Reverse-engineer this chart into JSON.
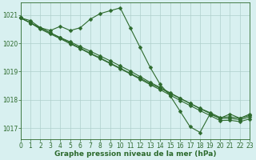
{
  "lines": [
    {
      "x": [
        0,
        1,
        2,
        3,
        4,
        5,
        6,
        7,
        8,
        9,
        10,
        11,
        12,
        13,
        14,
        15,
        16,
        17,
        18,
        19,
        20,
        21,
        22,
        23
      ],
      "y": [
        1020.9,
        1020.8,
        1020.55,
        1020.45,
        1020.6,
        1020.45,
        1020.55,
        1020.85,
        1021.05,
        1021.15,
        1021.25,
        1020.55,
        1019.85,
        1019.15,
        1018.55,
        1018.15,
        1017.6,
        1017.05,
        1016.85,
        1017.5,
        1017.35,
        1017.5,
        1017.35,
        1017.5
      ]
    },
    {
      "x": [
        0,
        1,
        2,
        3,
        4,
        5,
        6,
        7,
        8,
        9,
        10,
        11,
        12,
        13,
        14,
        15,
        16,
        17,
        18,
        19,
        20,
        21,
        22,
        23
      ],
      "y": [
        1020.9,
        1020.72,
        1020.54,
        1020.37,
        1020.19,
        1020.01,
        1019.83,
        1019.65,
        1019.48,
        1019.3,
        1019.12,
        1018.94,
        1018.76,
        1018.58,
        1018.41,
        1018.23,
        1018.05,
        1017.87,
        1017.69,
        1017.52,
        1017.34,
        1017.35,
        1017.3,
        1017.4
      ]
    },
    {
      "x": [
        0,
        1,
        2,
        3,
        4,
        5,
        6,
        7,
        8,
        9,
        10,
        11,
        12,
        13,
        14,
        15,
        16,
        17,
        18,
        19,
        20,
        21,
        22,
        23
      ],
      "y": [
        1020.9,
        1020.72,
        1020.54,
        1020.37,
        1020.2,
        1020.05,
        1019.88,
        1019.72,
        1019.55,
        1019.38,
        1019.2,
        1019.02,
        1018.82,
        1018.62,
        1018.44,
        1018.25,
        1018.06,
        1017.88,
        1017.7,
        1017.55,
        1017.38,
        1017.4,
        1017.35,
        1017.45
      ]
    },
    {
      "x": [
        0,
        1,
        2,
        3,
        4,
        5,
        6,
        7,
        8,
        9,
        10,
        11,
        12,
        13,
        14,
        15,
        16,
        17,
        18,
        19,
        20,
        21,
        22,
        23
      ],
      "y": [
        1020.9,
        1020.72,
        1020.5,
        1020.33,
        1020.16,
        1019.98,
        1019.81,
        1019.63,
        1019.46,
        1019.28,
        1019.1,
        1018.92,
        1018.73,
        1018.54,
        1018.36,
        1018.17,
        1017.98,
        1017.8,
        1017.62,
        1017.45,
        1017.27,
        1017.28,
        1017.23,
        1017.33
      ]
    }
  ],
  "line_color": "#2d6a2d",
  "marker": "D",
  "marker_size": 2.5,
  "xlim": [
    0,
    23
  ],
  "ylim": [
    1016.6,
    1021.45
  ],
  "yticks": [
    1017,
    1018,
    1019,
    1020,
    1021
  ],
  "xticks": [
    0,
    1,
    2,
    3,
    4,
    5,
    6,
    7,
    8,
    9,
    10,
    11,
    12,
    13,
    14,
    15,
    16,
    17,
    18,
    19,
    20,
    21,
    22,
    23
  ],
  "xlabel": "Graphe pression niveau de la mer (hPa)",
  "background_color": "#d8f0f0",
  "grid_color": "#afd0cc",
  "line_width": 0.8,
  "tick_fontsize": 5.5,
  "label_fontsize": 6.5
}
